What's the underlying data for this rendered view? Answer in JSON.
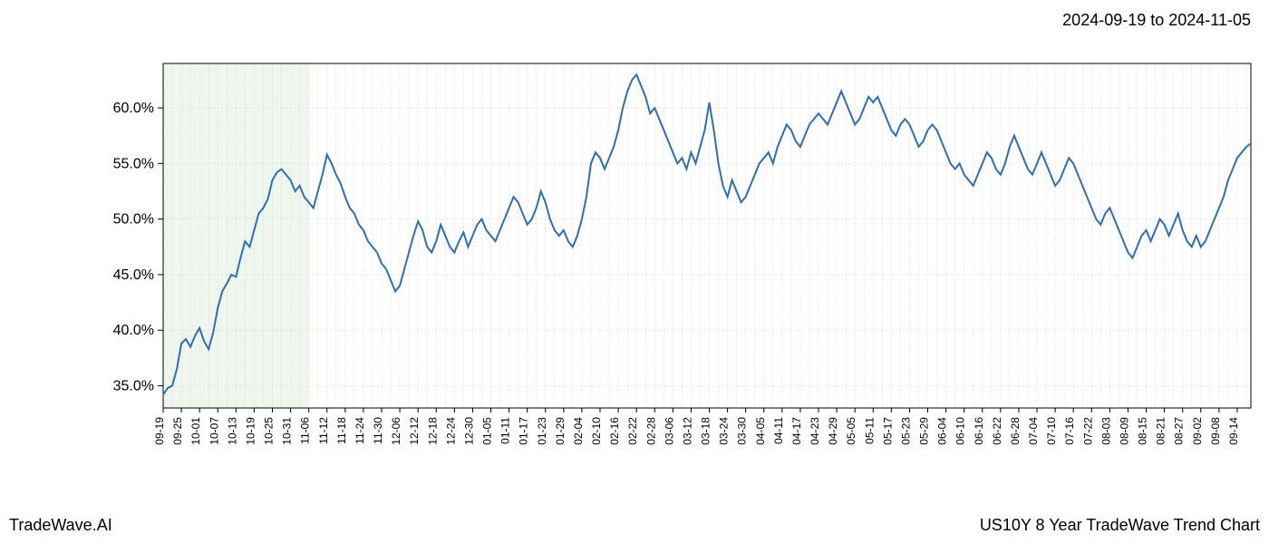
{
  "header": {
    "date_range": "2024-09-19 to 2024-11-05"
  },
  "footer": {
    "left": "TradeWave.AI",
    "right": "US10Y 8 Year TradeWave Trend Chart"
  },
  "chart": {
    "type": "line",
    "line_color": "#2f6eb0",
    "line_width": 2,
    "background_color": "#ffffff",
    "grid_color": "#d0d0d0",
    "axis_color": "#000000",
    "highlight_band": {
      "color": "#c8e0c8",
      "x_start": "09-19",
      "x_end": "11-06"
    },
    "y_axis": {
      "min": 33,
      "max": 64,
      "ticks": [
        35.0,
        40.0,
        45.0,
        50.0,
        55.0,
        60.0
      ],
      "tick_labels": [
        "35.0%",
        "40.0%",
        "45.0%",
        "50.0%",
        "55.0%",
        "60.0%"
      ],
      "label_fontsize": 16
    },
    "x_axis": {
      "labels": [
        "09-19",
        "09-25",
        "10-01",
        "10-07",
        "10-13",
        "10-19",
        "10-25",
        "10-31",
        "11-06",
        "11-12",
        "11-18",
        "11-24",
        "11-30",
        "12-06",
        "12-12",
        "12-18",
        "12-24",
        "12-30",
        "01-05",
        "01-11",
        "01-17",
        "01-23",
        "01-29",
        "02-04",
        "02-10",
        "02-16",
        "02-22",
        "02-28",
        "03-06",
        "03-12",
        "03-18",
        "03-24",
        "03-30",
        "04-05",
        "04-11",
        "04-17",
        "04-23",
        "04-29",
        "05-05",
        "05-11",
        "05-17",
        "05-23",
        "05-29",
        "06-04",
        "06-10",
        "06-16",
        "06-22",
        "06-28",
        "07-04",
        "07-10",
        "07-16",
        "07-22",
        "08-03",
        "08-09",
        "08-15",
        "08-21",
        "08-27",
        "09-02",
        "09-08",
        "09-14"
      ],
      "label_fontsize": 12
    },
    "series": [
      {
        "x": "09-19",
        "y": 34.2
      },
      {
        "x": "09-20",
        "y": 34.8
      },
      {
        "x": "09-21",
        "y": 35.0
      },
      {
        "x": "09-22",
        "y": 36.5
      },
      {
        "x": "09-25",
        "y": 38.8
      },
      {
        "x": "09-26",
        "y": 39.2
      },
      {
        "x": "09-27",
        "y": 38.5
      },
      {
        "x": "09-28",
        "y": 39.5
      },
      {
        "x": "10-01",
        "y": 40.2
      },
      {
        "x": "10-02",
        "y": 39.0
      },
      {
        "x": "10-03",
        "y": 38.3
      },
      {
        "x": "10-04",
        "y": 39.8
      },
      {
        "x": "10-07",
        "y": 42.0
      },
      {
        "x": "10-08",
        "y": 43.5
      },
      {
        "x": "10-09",
        "y": 44.2
      },
      {
        "x": "10-10",
        "y": 45.0
      },
      {
        "x": "10-13",
        "y": 44.8
      },
      {
        "x": "10-14",
        "y": 46.5
      },
      {
        "x": "10-15",
        "y": 48.0
      },
      {
        "x": "10-16",
        "y": 47.5
      },
      {
        "x": "10-19",
        "y": 49.0
      },
      {
        "x": "10-20",
        "y": 50.5
      },
      {
        "x": "10-21",
        "y": 51.0
      },
      {
        "x": "10-22",
        "y": 51.8
      },
      {
        "x": "10-25",
        "y": 53.5
      },
      {
        "x": "10-26",
        "y": 54.2
      },
      {
        "x": "10-27",
        "y": 54.5
      },
      {
        "x": "10-28",
        "y": 54.0
      },
      {
        "x": "10-31",
        "y": 53.5
      },
      {
        "x": "11-01",
        "y": 52.5
      },
      {
        "x": "11-02",
        "y": 53.0
      },
      {
        "x": "11-03",
        "y": 52.0
      },
      {
        "x": "11-06",
        "y": 51.5
      },
      {
        "x": "11-07",
        "y": 51.0
      },
      {
        "x": "11-08",
        "y": 52.5
      },
      {
        "x": "11-09",
        "y": 54.0
      },
      {
        "x": "11-12",
        "y": 55.8
      },
      {
        "x": "11-13",
        "y": 55.0
      },
      {
        "x": "11-14",
        "y": 54.0
      },
      {
        "x": "11-15",
        "y": 53.2
      },
      {
        "x": "11-18",
        "y": 52.0
      },
      {
        "x": "11-19",
        "y": 51.0
      },
      {
        "x": "11-20",
        "y": 50.5
      },
      {
        "x": "11-21",
        "y": 49.5
      },
      {
        "x": "11-24",
        "y": 49.0
      },
      {
        "x": "11-25",
        "y": 48.0
      },
      {
        "x": "11-26",
        "y": 47.5
      },
      {
        "x": "11-27",
        "y": 47.0
      },
      {
        "x": "11-30",
        "y": 46.0
      },
      {
        "x": "12-01",
        "y": 45.5
      },
      {
        "x": "12-02",
        "y": 44.5
      },
      {
        "x": "12-03",
        "y": 43.5
      },
      {
        "x": "12-06",
        "y": 44.0
      },
      {
        "x": "12-07",
        "y": 45.5
      },
      {
        "x": "12-08",
        "y": 47.0
      },
      {
        "x": "12-09",
        "y": 48.5
      },
      {
        "x": "12-12",
        "y": 49.8
      },
      {
        "x": "12-13",
        "y": 49.0
      },
      {
        "x": "12-14",
        "y": 47.5
      },
      {
        "x": "12-15",
        "y": 47.0
      },
      {
        "x": "12-18",
        "y": 48.0
      },
      {
        "x": "12-19",
        "y": 49.5
      },
      {
        "x": "12-20",
        "y": 48.5
      },
      {
        "x": "12-21",
        "y": 47.5
      },
      {
        "x": "12-24",
        "y": 47.0
      },
      {
        "x": "12-25",
        "y": 48.0
      },
      {
        "x": "12-26",
        "y": 48.8
      },
      {
        "x": "12-27",
        "y": 47.5
      },
      {
        "x": "12-30",
        "y": 48.5
      },
      {
        "x": "12-31",
        "y": 49.5
      },
      {
        "x": "01-01",
        "y": 50.0
      },
      {
        "x": "01-02",
        "y": 49.0
      },
      {
        "x": "01-05",
        "y": 48.5
      },
      {
        "x": "01-06",
        "y": 48.0
      },
      {
        "x": "01-07",
        "y": 49.0
      },
      {
        "x": "01-08",
        "y": 50.0
      },
      {
        "x": "01-11",
        "y": 51.0
      },
      {
        "x": "01-12",
        "y": 52.0
      },
      {
        "x": "01-13",
        "y": 51.5
      },
      {
        "x": "01-14",
        "y": 50.5
      },
      {
        "x": "01-17",
        "y": 49.5
      },
      {
        "x": "01-18",
        "y": 50.0
      },
      {
        "x": "01-19",
        "y": 51.0
      },
      {
        "x": "01-20",
        "y": 52.5
      },
      {
        "x": "01-23",
        "y": 51.5
      },
      {
        "x": "01-24",
        "y": 50.0
      },
      {
        "x": "01-25",
        "y": 49.0
      },
      {
        "x": "01-26",
        "y": 48.5
      },
      {
        "x": "01-29",
        "y": 49.0
      },
      {
        "x": "01-30",
        "y": 48.0
      },
      {
        "x": "01-31",
        "y": 47.5
      },
      {
        "x": "02-01",
        "y": 48.5
      },
      {
        "x": "02-04",
        "y": 50.0
      },
      {
        "x": "02-05",
        "y": 52.0
      },
      {
        "x": "02-06",
        "y": 55.0
      },
      {
        "x": "02-07",
        "y": 56.0
      },
      {
        "x": "02-10",
        "y": 55.5
      },
      {
        "x": "02-11",
        "y": 54.5
      },
      {
        "x": "02-12",
        "y": 55.5
      },
      {
        "x": "02-13",
        "y": 56.5
      },
      {
        "x": "02-16",
        "y": 58.0
      },
      {
        "x": "02-17",
        "y": 60.0
      },
      {
        "x": "02-18",
        "y": 61.5
      },
      {
        "x": "02-19",
        "y": 62.5
      },
      {
        "x": "02-22",
        "y": 63.0
      },
      {
        "x": "02-23",
        "y": 62.0
      },
      {
        "x": "02-24",
        "y": 61.0
      },
      {
        "x": "02-25",
        "y": 59.5
      },
      {
        "x": "02-28",
        "y": 60.0
      },
      {
        "x": "03-01",
        "y": 59.0
      },
      {
        "x": "03-02",
        "y": 58.0
      },
      {
        "x": "03-03",
        "y": 57.0
      },
      {
        "x": "03-06",
        "y": 56.0
      },
      {
        "x": "03-07",
        "y": 55.0
      },
      {
        "x": "03-08",
        "y": 55.5
      },
      {
        "x": "03-09",
        "y": 54.5
      },
      {
        "x": "03-12",
        "y": 56.0
      },
      {
        "x": "03-13",
        "y": 55.0
      },
      {
        "x": "03-14",
        "y": 56.5
      },
      {
        "x": "03-15",
        "y": 58.0
      },
      {
        "x": "03-18",
        "y": 60.5
      },
      {
        "x": "03-19",
        "y": 58.0
      },
      {
        "x": "03-20",
        "y": 55.0
      },
      {
        "x": "03-21",
        "y": 53.0
      },
      {
        "x": "03-24",
        "y": 52.0
      },
      {
        "x": "03-25",
        "y": 53.5
      },
      {
        "x": "03-26",
        "y": 52.5
      },
      {
        "x": "03-27",
        "y": 51.5
      },
      {
        "x": "03-30",
        "y": 52.0
      },
      {
        "x": "03-31",
        "y": 53.0
      },
      {
        "x": "04-01",
        "y": 54.0
      },
      {
        "x": "04-02",
        "y": 55.0
      },
      {
        "x": "04-05",
        "y": 55.5
      },
      {
        "x": "04-06",
        "y": 56.0
      },
      {
        "x": "04-07",
        "y": 55.0
      },
      {
        "x": "04-08",
        "y": 56.5
      },
      {
        "x": "04-11",
        "y": 57.5
      },
      {
        "x": "04-12",
        "y": 58.5
      },
      {
        "x": "04-13",
        "y": 58.0
      },
      {
        "x": "04-14",
        "y": 57.0
      },
      {
        "x": "04-17",
        "y": 56.5
      },
      {
        "x": "04-18",
        "y": 57.5
      },
      {
        "x": "04-19",
        "y": 58.5
      },
      {
        "x": "04-20",
        "y": 59.0
      },
      {
        "x": "04-23",
        "y": 59.5
      },
      {
        "x": "04-24",
        "y": 59.0
      },
      {
        "x": "04-25",
        "y": 58.5
      },
      {
        "x": "04-26",
        "y": 59.5
      },
      {
        "x": "04-29",
        "y": 60.5
      },
      {
        "x": "04-30",
        "y": 61.5
      },
      {
        "x": "05-01",
        "y": 60.5
      },
      {
        "x": "05-02",
        "y": 59.5
      },
      {
        "x": "05-05",
        "y": 58.5
      },
      {
        "x": "05-06",
        "y": 59.0
      },
      {
        "x": "05-07",
        "y": 60.0
      },
      {
        "x": "05-08",
        "y": 61.0
      },
      {
        "x": "05-11",
        "y": 60.5
      },
      {
        "x": "05-12",
        "y": 61.0
      },
      {
        "x": "05-13",
        "y": 60.0
      },
      {
        "x": "05-14",
        "y": 59.0
      },
      {
        "x": "05-17",
        "y": 58.0
      },
      {
        "x": "05-18",
        "y": 57.5
      },
      {
        "x": "05-19",
        "y": 58.5
      },
      {
        "x": "05-20",
        "y": 59.0
      },
      {
        "x": "05-23",
        "y": 58.5
      },
      {
        "x": "05-24",
        "y": 57.5
      },
      {
        "x": "05-25",
        "y": 56.5
      },
      {
        "x": "05-26",
        "y": 57.0
      },
      {
        "x": "05-29",
        "y": 58.0
      },
      {
        "x": "05-30",
        "y": 58.5
      },
      {
        "x": "05-31",
        "y": 58.0
      },
      {
        "x": "06-01",
        "y": 57.0
      },
      {
        "x": "06-04",
        "y": 56.0
      },
      {
        "x": "06-05",
        "y": 55.0
      },
      {
        "x": "06-06",
        "y": 54.5
      },
      {
        "x": "06-07",
        "y": 55.0
      },
      {
        "x": "06-10",
        "y": 54.0
      },
      {
        "x": "06-11",
        "y": 53.5
      },
      {
        "x": "06-12",
        "y": 53.0
      },
      {
        "x": "06-13",
        "y": 54.0
      },
      {
        "x": "06-16",
        "y": 55.0
      },
      {
        "x": "06-17",
        "y": 56.0
      },
      {
        "x": "06-18",
        "y": 55.5
      },
      {
        "x": "06-19",
        "y": 54.5
      },
      {
        "x": "06-22",
        "y": 54.0
      },
      {
        "x": "06-23",
        "y": 55.0
      },
      {
        "x": "06-24",
        "y": 56.5
      },
      {
        "x": "06-25",
        "y": 57.5
      },
      {
        "x": "06-28",
        "y": 56.5
      },
      {
        "x": "06-29",
        "y": 55.5
      },
      {
        "x": "06-30",
        "y": 54.5
      },
      {
        "x": "07-01",
        "y": 54.0
      },
      {
        "x": "07-04",
        "y": 55.0
      },
      {
        "x": "07-05",
        "y": 56.0
      },
      {
        "x": "07-06",
        "y": 55.0
      },
      {
        "x": "07-07",
        "y": 54.0
      },
      {
        "x": "07-10",
        "y": 53.0
      },
      {
        "x": "07-11",
        "y": 53.5
      },
      {
        "x": "07-12",
        "y": 54.5
      },
      {
        "x": "07-13",
        "y": 55.5
      },
      {
        "x": "07-16",
        "y": 55.0
      },
      {
        "x": "07-17",
        "y": 54.0
      },
      {
        "x": "07-18",
        "y": 53.0
      },
      {
        "x": "07-19",
        "y": 52.0
      },
      {
        "x": "07-22",
        "y": 51.0
      },
      {
        "x": "07-23",
        "y": 50.0
      },
      {
        "x": "07-24",
        "y": 49.5
      },
      {
        "x": "07-25",
        "y": 50.5
      },
      {
        "x": "08-03",
        "y": 51.0
      },
      {
        "x": "08-04",
        "y": 50.0
      },
      {
        "x": "08-05",
        "y": 49.0
      },
      {
        "x": "08-06",
        "y": 48.0
      },
      {
        "x": "08-09",
        "y": 47.0
      },
      {
        "x": "08-10",
        "y": 46.5
      },
      {
        "x": "08-11",
        "y": 47.5
      },
      {
        "x": "08-12",
        "y": 48.5
      },
      {
        "x": "08-15",
        "y": 49.0
      },
      {
        "x": "08-16",
        "y": 48.0
      },
      {
        "x": "08-17",
        "y": 49.0
      },
      {
        "x": "08-18",
        "y": 50.0
      },
      {
        "x": "08-21",
        "y": 49.5
      },
      {
        "x": "08-22",
        "y": 48.5
      },
      {
        "x": "08-23",
        "y": 49.5
      },
      {
        "x": "08-24",
        "y": 50.5
      },
      {
        "x": "08-27",
        "y": 49.0
      },
      {
        "x": "08-28",
        "y": 48.0
      },
      {
        "x": "08-29",
        "y": 47.5
      },
      {
        "x": "08-30",
        "y": 48.5
      },
      {
        "x": "09-02",
        "y": 47.5
      },
      {
        "x": "09-03",
        "y": 48.0
      },
      {
        "x": "09-04",
        "y": 49.0
      },
      {
        "x": "09-05",
        "y": 50.0
      },
      {
        "x": "09-08",
        "y": 51.0
      },
      {
        "x": "09-09",
        "y": 52.0
      },
      {
        "x": "09-10",
        "y": 53.5
      },
      {
        "x": "09-11",
        "y": 54.5
      },
      {
        "x": "09-14",
        "y": 55.5
      },
      {
        "x": "09-15",
        "y": 56.0
      },
      {
        "x": "09-16",
        "y": 56.5
      },
      {
        "x": "09-17",
        "y": 56.8
      }
    ]
  }
}
